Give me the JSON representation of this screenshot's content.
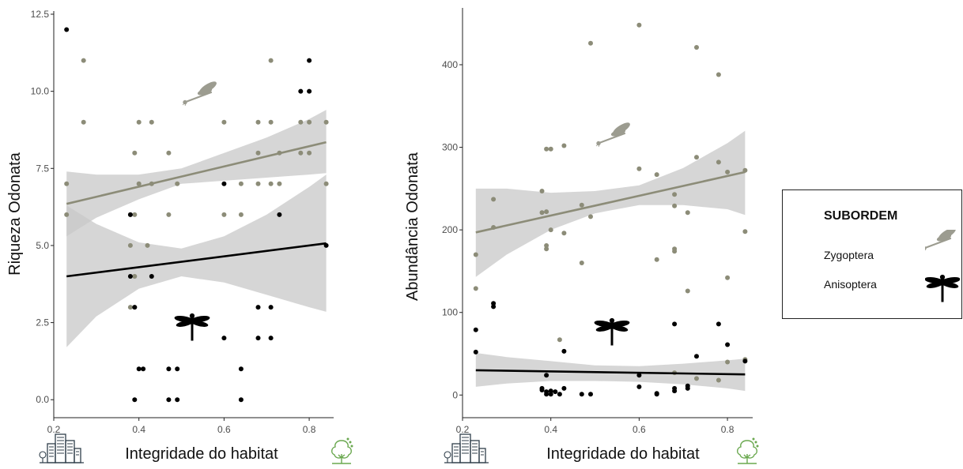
{
  "colors": {
    "zygoptera": "#8c8c78",
    "anisoptera": "#000000",
    "ribbon": "#c8c8c8",
    "axis": "#222222",
    "icon_green": "#6aa84f",
    "icon_dark": "#2f3e4a"
  },
  "legend": {
    "title": "SUBORDEM",
    "items": [
      {
        "label": "Zygoptera",
        "icon": "damselfly-icon"
      },
      {
        "label": "Anisoptera",
        "icon": "dragonfly-icon"
      }
    ]
  },
  "chart_data": [
    {
      "type": "scatter",
      "title": "",
      "xlabel": "Integridade do habitat",
      "ylabel": "Riqueza Odonata",
      "xlim": [
        0.2,
        0.85
      ],
      "ylim": [
        -0.25,
        12.5
      ],
      "xticks": [
        0.2,
        0.4,
        0.6,
        0.8
      ],
      "yticks": [
        0.0,
        2.5,
        5.0,
        7.5,
        10.0,
        12.5
      ],
      "xtick_labels": [
        "0.2",
        "0.4",
        "0.6",
        "0.8"
      ],
      "ytick_labels": [
        "0.0",
        "2.5",
        "5.0",
        "7.5",
        "10.0",
        "12.5"
      ],
      "grid": false,
      "x_axis_icons": [
        "city-buildings-icon",
        "tree-icon"
      ],
      "series": [
        {
          "name": "Zygoptera",
          "points": [
            [
              0.23,
              7
            ],
            [
              0.23,
              6
            ],
            [
              0.27,
              11
            ],
            [
              0.27,
              9
            ],
            [
              0.38,
              6
            ],
            [
              0.38,
              5
            ],
            [
              0.39,
              8
            ],
            [
              0.39,
              6
            ],
            [
              0.39,
              4
            ],
            [
              0.4,
              9
            ],
            [
              0.4,
              7
            ],
            [
              0.42,
              5
            ],
            [
              0.43,
              9
            ],
            [
              0.43,
              7
            ],
            [
              0.47,
              8
            ],
            [
              0.47,
              6
            ],
            [
              0.49,
              7
            ],
            [
              0.6,
              9
            ],
            [
              0.6,
              6
            ],
            [
              0.64,
              7
            ],
            [
              0.64,
              6
            ],
            [
              0.68,
              9
            ],
            [
              0.68,
              8
            ],
            [
              0.68,
              7
            ],
            [
              0.71,
              11
            ],
            [
              0.71,
              9
            ],
            [
              0.71,
              7
            ],
            [
              0.73,
              8
            ],
            [
              0.73,
              7
            ],
            [
              0.78,
              9
            ],
            [
              0.78,
              8
            ],
            [
              0.8,
              9
            ],
            [
              0.8,
              8
            ],
            [
              0.84,
              9
            ],
            [
              0.84,
              7
            ],
            [
              0.38,
              3
            ],
            [
              0.39,
              3
            ]
          ],
          "trend": {
            "x": [
              0.23,
              0.84
            ],
            "y": [
              6.35,
              8.35
            ]
          },
          "band": {
            "x": [
              0.23,
              0.3,
              0.4,
              0.5,
              0.6,
              0.7,
              0.8,
              0.84
            ],
            "lower": [
              5.3,
              5.9,
              6.5,
              7.0,
              7.1,
              7.2,
              7.3,
              7.35
            ],
            "upper": [
              7.4,
              7.3,
              7.3,
              7.5,
              8.0,
              8.5,
              9.1,
              9.4
            ]
          }
        },
        {
          "name": "Anisoptera",
          "points": [
            [
              0.23,
              12
            ],
            [
              0.38,
              6
            ],
            [
              0.38,
              4
            ],
            [
              0.39,
              3
            ],
            [
              0.39,
              0
            ],
            [
              0.4,
              1
            ],
            [
              0.41,
              1
            ],
            [
              0.43,
              4
            ],
            [
              0.47,
              1
            ],
            [
              0.47,
              0
            ],
            [
              0.49,
              1
            ],
            [
              0.49,
              0
            ],
            [
              0.6,
              7
            ],
            [
              0.6,
              2
            ],
            [
              0.64,
              1
            ],
            [
              0.64,
              0
            ],
            [
              0.68,
              3
            ],
            [
              0.68,
              2
            ],
            [
              0.71,
              3
            ],
            [
              0.71,
              2
            ],
            [
              0.73,
              6
            ],
            [
              0.78,
              10
            ],
            [
              0.8,
              10
            ],
            [
              0.8,
              11
            ],
            [
              0.84,
              5
            ]
          ],
          "trend": {
            "x": [
              0.23,
              0.84
            ],
            "y": [
              4.0,
              5.07
            ]
          },
          "band": {
            "x": [
              0.23,
              0.3,
              0.4,
              0.5,
              0.6,
              0.7,
              0.8,
              0.84
            ],
            "lower": [
              1.7,
              2.7,
              3.6,
              4.0,
              3.8,
              3.4,
              3.0,
              2.85
            ],
            "upper": [
              6.3,
              5.7,
              5.1,
              4.9,
              5.3,
              6.0,
              6.9,
              7.3
            ]
          }
        }
      ]
    },
    {
      "type": "scatter",
      "title": "",
      "xlabel": "Integridade do habitat",
      "ylabel": "Abundância Odonata",
      "xlim": [
        0.2,
        0.85
      ],
      "ylim": [
        -15,
        465
      ],
      "xticks": [
        0.2,
        0.4,
        0.6,
        0.8
      ],
      "yticks": [
        0,
        100,
        200,
        300,
        400
      ],
      "xtick_labels": [
        "0.2",
        "0.4",
        "0.6",
        "0.8"
      ],
      "ytick_labels": [
        "0",
        "100",
        "200",
        "300",
        "400"
      ],
      "grid": false,
      "x_axis_icons": [
        "city-buildings-icon",
        "tree-icon"
      ],
      "series": [
        {
          "name": "Zygoptera",
          "points": [
            [
              0.23,
              170
            ],
            [
              0.23,
              129
            ],
            [
              0.27,
              237
            ],
            [
              0.27,
              203
            ],
            [
              0.38,
              247
            ],
            [
              0.38,
              221
            ],
            [
              0.39,
              222
            ],
            [
              0.39,
              181
            ],
            [
              0.39,
              177
            ],
            [
              0.39,
              298
            ],
            [
              0.4,
              298
            ],
            [
              0.4,
              200
            ],
            [
              0.42,
              67
            ],
            [
              0.43,
              302
            ],
            [
              0.43,
              196
            ],
            [
              0.47,
              230
            ],
            [
              0.47,
              160
            ],
            [
              0.49,
              426
            ],
            [
              0.49,
              216
            ],
            [
              0.6,
              448
            ],
            [
              0.6,
              274
            ],
            [
              0.64,
              267
            ],
            [
              0.64,
              164
            ],
            [
              0.68,
              243
            ],
            [
              0.68,
              229
            ],
            [
              0.68,
              177
            ],
            [
              0.68,
              174
            ],
            [
              0.71,
              221
            ],
            [
              0.71,
              126
            ],
            [
              0.73,
              421
            ],
            [
              0.73,
              288
            ],
            [
              0.78,
              388
            ],
            [
              0.78,
              282
            ],
            [
              0.8,
              270
            ],
            [
              0.8,
              142
            ],
            [
              0.84,
              272
            ],
            [
              0.84,
              198
            ],
            [
              0.68,
              27
            ],
            [
              0.73,
              20
            ],
            [
              0.78,
              18
            ],
            [
              0.8,
              40
            ],
            [
              0.84,
              43
            ]
          ],
          "trend": {
            "x": [
              0.23,
              0.84
            ],
            "y": [
              197,
              270
            ]
          },
          "band": {
            "x": [
              0.23,
              0.3,
              0.4,
              0.5,
              0.6,
              0.7,
              0.8,
              0.84
            ],
            "lower": [
              143,
              170,
              200,
              220,
              230,
              230,
              225,
              218
            ],
            "upper": [
              250,
              250,
              245,
              247,
              254,
              275,
              305,
              320
            ]
          }
        },
        {
          "name": "Anisoptera",
          "points": [
            [
              0.23,
              79
            ],
            [
              0.23,
              52
            ],
            [
              0.27,
              111
            ],
            [
              0.27,
              107
            ],
            [
              0.38,
              8
            ],
            [
              0.38,
              6
            ],
            [
              0.39,
              24
            ],
            [
              0.39,
              4
            ],
            [
              0.39,
              1
            ],
            [
              0.4,
              5
            ],
            [
              0.4,
              1
            ],
            [
              0.41,
              4
            ],
            [
              0.42,
              1
            ],
            [
              0.43,
              53
            ],
            [
              0.43,
              8
            ],
            [
              0.47,
              1
            ],
            [
              0.49,
              1
            ],
            [
              0.6,
              24
            ],
            [
              0.6,
              10
            ],
            [
              0.64,
              2
            ],
            [
              0.64,
              1
            ],
            [
              0.68,
              86
            ],
            [
              0.68,
              8
            ],
            [
              0.68,
              5
            ],
            [
              0.71,
              11
            ],
            [
              0.71,
              8
            ],
            [
              0.73,
              47
            ],
            [
              0.78,
              86
            ],
            [
              0.8,
              61
            ],
            [
              0.84,
              41
            ]
          ],
          "trend": {
            "x": [
              0.23,
              0.84
            ],
            "y": [
              30,
              25
            ]
          },
          "band": {
            "x": [
              0.23,
              0.3,
              0.4,
              0.5,
              0.6,
              0.7,
              0.8,
              0.84
            ],
            "lower": [
              10,
              14,
              17,
              17,
              16,
              13,
              8,
              5
            ],
            "upper": [
              51,
              46,
              41,
              36,
              35,
              38,
              42,
              44
            ]
          }
        }
      ]
    }
  ]
}
